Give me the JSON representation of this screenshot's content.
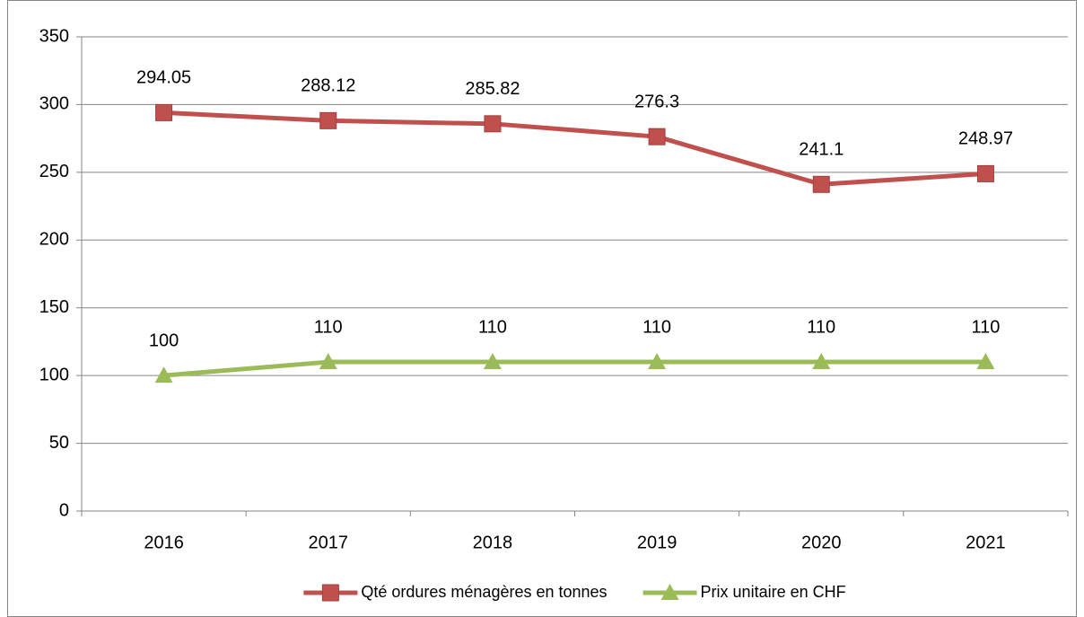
{
  "chart_data": {
    "type": "line",
    "categories": [
      "2016",
      "2017",
      "2018",
      "2019",
      "2020",
      "2021"
    ],
    "series": [
      {
        "name": "Qté ordures ménagères en tonnes",
        "color": "#c0504d",
        "marker": "square",
        "values": [
          294.05,
          288.12,
          285.82,
          276.3,
          241.1,
          248.97
        ]
      },
      {
        "name": "Prix unitaire en CHF",
        "color": "#9bbb59",
        "marker": "triangle",
        "values": [
          100,
          110,
          110,
          110,
          110,
          110
        ]
      }
    ],
    "ylim": [
      0,
      350
    ],
    "yticks": [
      0,
      50,
      100,
      150,
      200,
      250,
      300,
      350
    ],
    "grid": true,
    "legend": "bottom"
  }
}
